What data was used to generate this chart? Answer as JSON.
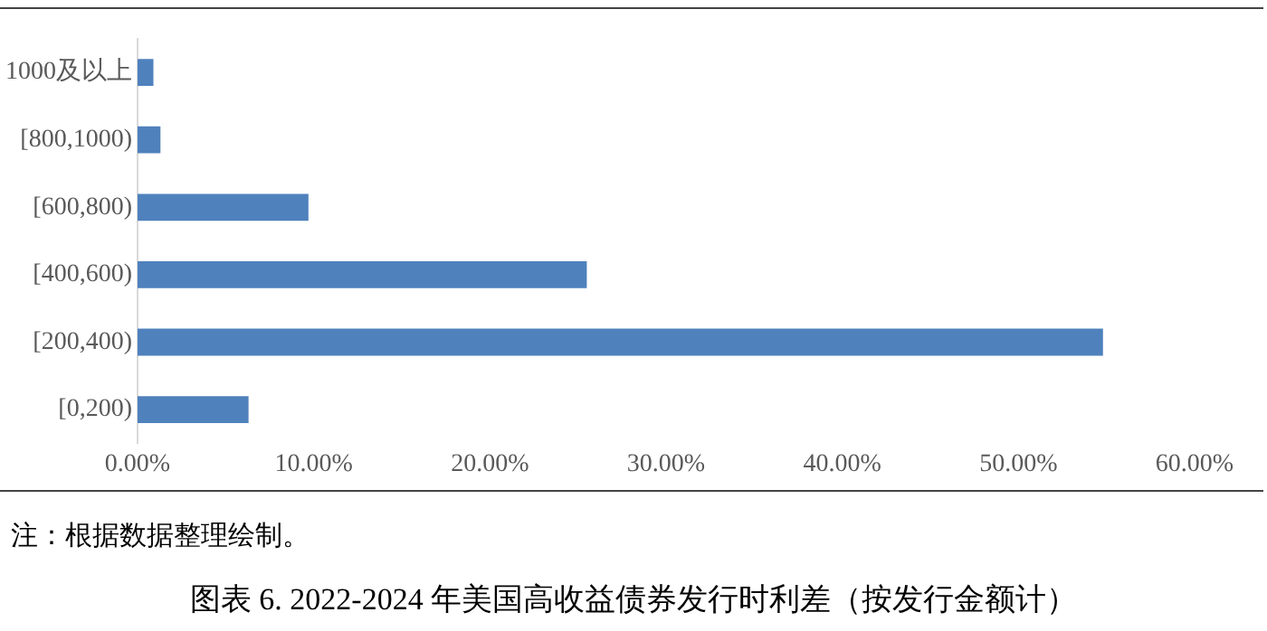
{
  "chart_data": {
    "type": "bar",
    "orientation": "horizontal",
    "title": "图表 6.   2022-2024 年美国高收益债券发行时利差（按发行金额计）",
    "annotations": [
      "注：根据数据整理绘制。"
    ],
    "categories": [
      "1000及以上",
      "[800,1000)",
      "[600,800)",
      "[400,600)",
      "[200,400)",
      "[0,200)"
    ],
    "values": [
      0.9,
      1.3,
      9.7,
      25.5,
      54.8,
      6.3
    ],
    "color": "#4f81bd",
    "xlim": [
      0,
      60
    ],
    "xticks": [
      {
        "value": 0,
        "label": "0.00%"
      },
      {
        "value": 10,
        "label": "10.00%"
      },
      {
        "value": 20,
        "label": "20.00%"
      },
      {
        "value": 30,
        "label": "30.00%"
      },
      {
        "value": 40,
        "label": "40.00%"
      },
      {
        "value": 50,
        "label": "50.00%"
      },
      {
        "value": 60,
        "label": "60.00%"
      }
    ],
    "grid": false,
    "legend": false
  }
}
